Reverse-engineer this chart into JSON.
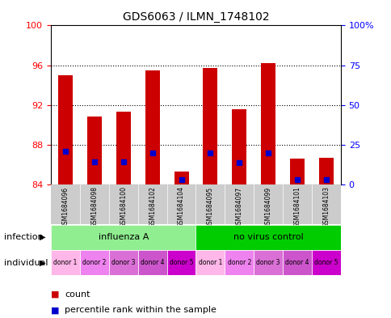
{
  "title": "GDS6063 / ILMN_1748102",
  "samples": [
    "GSM1684096",
    "GSM1684098",
    "GSM1684100",
    "GSM1684102",
    "GSM1684104",
    "GSM1684095",
    "GSM1684097",
    "GSM1684099",
    "GSM1684101",
    "GSM1684103"
  ],
  "bar_bottom": 84,
  "bar_tops": [
    95.0,
    90.8,
    91.3,
    95.5,
    85.3,
    95.7,
    91.6,
    96.2,
    86.6,
    86.7
  ],
  "blue_positions": [
    87.3,
    86.3,
    86.3,
    87.2,
    84.5,
    87.2,
    86.2,
    87.2,
    84.5,
    84.5
  ],
  "ylim_left": [
    84,
    100
  ],
  "yticks_left": [
    84,
    88,
    92,
    96,
    100
  ],
  "ylim_right": [
    0,
    100
  ],
  "yticks_right": [
    0,
    25,
    50,
    75,
    100
  ],
  "ytick_labels_right": [
    "0",
    "25",
    "50",
    "75",
    "100%"
  ],
  "infection_groups": [
    {
      "label": "influenza A",
      "start": 0,
      "end": 5,
      "color": "#90EE90"
    },
    {
      "label": "no virus control",
      "start": 5,
      "end": 10,
      "color": "#00CC00"
    }
  ],
  "individual_colors": [
    "#FFB6E8",
    "#EE82EE",
    "#DA70D6",
    "#CC55CC",
    "#CC00CC",
    "#FFB6E8",
    "#EE82EE",
    "#DA70D6",
    "#CC55CC",
    "#CC00CC"
  ],
  "individual_labels": [
    "donor 1",
    "donor 2",
    "donor 3",
    "donor 4",
    "donor 5",
    "donor 1",
    "donor 2",
    "donor 3",
    "donor 4",
    "donor 5"
  ],
  "bar_color": "#CC0000",
  "blue_color": "#0000CC",
  "grid_color": "#000000",
  "bg_color": "#FFFFFF",
  "label_infection": "infection",
  "label_individual": "individual",
  "legend_count": "count",
  "legend_percentile": "percentile rank within the sample"
}
